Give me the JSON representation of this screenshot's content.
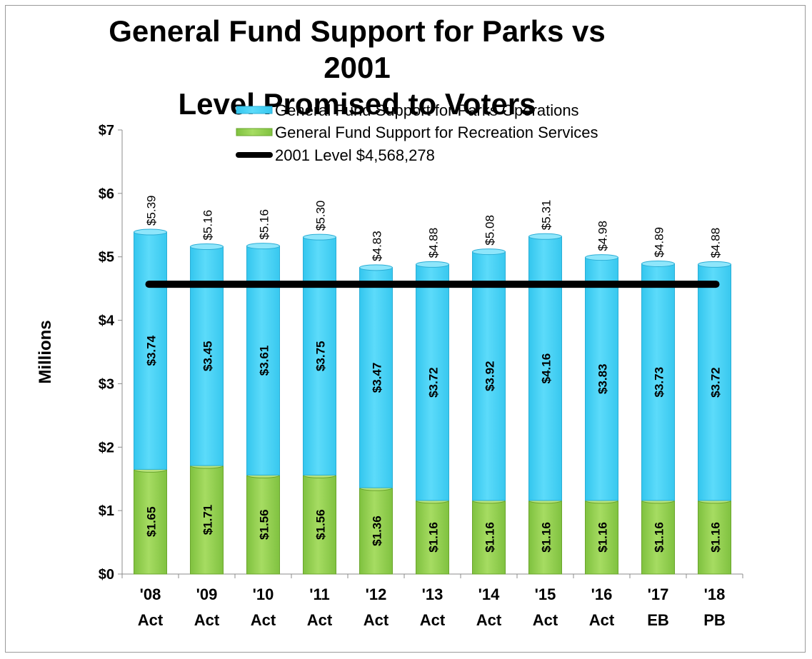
{
  "chart_data": {
    "type": "bar",
    "stacked": true,
    "title": "General Fund Support for Parks vs 2001\nLevel Promised to Voters",
    "ylabel": "Millions",
    "xlabel": "",
    "ylim": [
      0,
      7
    ],
    "y_ticks": [
      "$0",
      "$1",
      "$2",
      "$3",
      "$4",
      "$5",
      "$6",
      "$7"
    ],
    "categories": [
      [
        "'08",
        "Act"
      ],
      [
        "'09",
        "Act"
      ],
      [
        "'10",
        "Act"
      ],
      [
        "'11",
        "Act"
      ],
      [
        "'12",
        "Act"
      ],
      [
        "'13",
        "Act"
      ],
      [
        "'14",
        "Act"
      ],
      [
        "'15",
        "Act"
      ],
      [
        "'16",
        "Act"
      ],
      [
        "'17",
        "EB"
      ],
      [
        "'18",
        "PB"
      ]
    ],
    "series": [
      {
        "name": "General Fund Support for Recreation Services",
        "color": "#92d050",
        "values": [
          1.65,
          1.71,
          1.56,
          1.56,
          1.36,
          1.16,
          1.16,
          1.16,
          1.16,
          1.16,
          1.16
        ],
        "labels": [
          "$1.65",
          "$1.71",
          "$1.56",
          "$1.56",
          "$1.36",
          "$1.16",
          "$1.16",
          "$1.16",
          "$1.16",
          "$1.16",
          "$1.16"
        ]
      },
      {
        "name": "General Fund Support for Parks Operations",
        "color": "#55d5f5",
        "values": [
          3.74,
          3.45,
          3.61,
          3.75,
          3.47,
          3.72,
          3.92,
          4.16,
          3.83,
          3.73,
          3.72
        ],
        "labels": [
          "$3.74",
          "$3.45",
          "$3.61",
          "$3.75",
          "$3.47",
          "$3.72",
          "$3.92",
          "$4.16",
          "$3.83",
          "$3.73",
          "$3.72"
        ]
      }
    ],
    "totals": {
      "values": [
        5.39,
        5.16,
        5.16,
        5.3,
        4.83,
        4.88,
        5.08,
        5.31,
        4.98,
        4.89,
        4.88
      ],
      "labels": [
        "$5.39",
        "$5.16",
        "$5.16",
        "$5.30",
        "$4.83",
        "$4.88",
        "$5.08",
        "$5.31",
        "$4.98",
        "$4.89",
        "$4.88"
      ]
    },
    "reference_line": {
      "name": "2001 Level $4,568,278",
      "value": 4.568278,
      "color": "#000000"
    },
    "legend": {
      "position": "top",
      "order": [
        "General Fund Support for Parks Operations",
        "General Fund Support for Recreation Services",
        "2001 Level $4,568,278"
      ]
    },
    "grid": false
  }
}
